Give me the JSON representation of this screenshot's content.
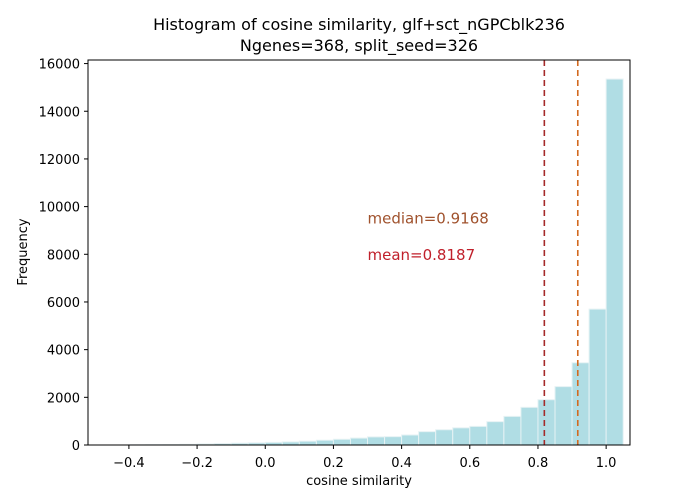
{
  "chart_data": {
    "type": "bar",
    "title_line1": "Histogram of cosine similarity, glf+sct_nGPCblk236",
    "title_line2": "Ngenes=368, split_seed=326",
    "xlabel": "cosine similarity",
    "ylabel": "Frequency",
    "xlim": [
      -0.52,
      1.07
    ],
    "ylim": [
      0,
      16150
    ],
    "x_ticks": [
      -0.4,
      -0.2,
      0.0,
      0.2,
      0.4,
      0.6,
      0.8,
      1.0
    ],
    "x_tick_labels": [
      "−0.4",
      "−0.2",
      "0.0",
      "0.2",
      "0.4",
      "0.6",
      "0.8",
      "1.0"
    ],
    "y_ticks": [
      0,
      2000,
      4000,
      6000,
      8000,
      10000,
      12000,
      14000,
      16000
    ],
    "y_tick_labels": [
      "0",
      "2000",
      "4000",
      "6000",
      "8000",
      "10000",
      "12000",
      "14000",
      "16000"
    ],
    "bin_width": 0.05,
    "bins": [
      {
        "x0": -0.4,
        "value": 10
      },
      {
        "x0": -0.35,
        "value": 15
      },
      {
        "x0": -0.3,
        "value": 20
      },
      {
        "x0": -0.25,
        "value": 30
      },
      {
        "x0": -0.2,
        "value": 45
      },
      {
        "x0": -0.15,
        "value": 60
      },
      {
        "x0": -0.1,
        "value": 75
      },
      {
        "x0": -0.05,
        "value": 90
      },
      {
        "x0": 0.0,
        "value": 110
      },
      {
        "x0": 0.05,
        "value": 130
      },
      {
        "x0": 0.1,
        "value": 160
      },
      {
        "x0": 0.15,
        "value": 200
      },
      {
        "x0": 0.2,
        "value": 240
      },
      {
        "x0": 0.25,
        "value": 290
      },
      {
        "x0": 0.3,
        "value": 340
      },
      {
        "x0": 0.35,
        "value": 350
      },
      {
        "x0": 0.4,
        "value": 420
      },
      {
        "x0": 0.45,
        "value": 560
      },
      {
        "x0": 0.5,
        "value": 640
      },
      {
        "x0": 0.55,
        "value": 720
      },
      {
        "x0": 0.6,
        "value": 780
      },
      {
        "x0": 0.65,
        "value": 980
      },
      {
        "x0": 0.7,
        "value": 1200
      },
      {
        "x0": 0.75,
        "value": 1580
      },
      {
        "x0": 0.8,
        "value": 1900
      },
      {
        "x0": 0.85,
        "value": 2450
      },
      {
        "x0": 0.9,
        "value": 3450
      },
      {
        "x0": 0.95,
        "value": 5700
      },
      {
        "x0": 1.0,
        "value": 15350
      }
    ],
    "mean_line": {
      "x": 0.8187,
      "color": "#a52a2a"
    },
    "median_line": {
      "x": 0.9168,
      "color": "#d2691e"
    },
    "annotations": [
      {
        "text": "median=0.9168",
        "x": 0.3,
        "y": 9300,
        "color": "#a0522d"
      },
      {
        "text": "mean=0.8187",
        "x": 0.3,
        "y": 7750,
        "color": "#c0202b"
      }
    ],
    "colors": {
      "bar_fill": "#b0dde4",
      "bar_edge": "#e6f2f4",
      "axis": "#000000"
    },
    "grid": false
  }
}
